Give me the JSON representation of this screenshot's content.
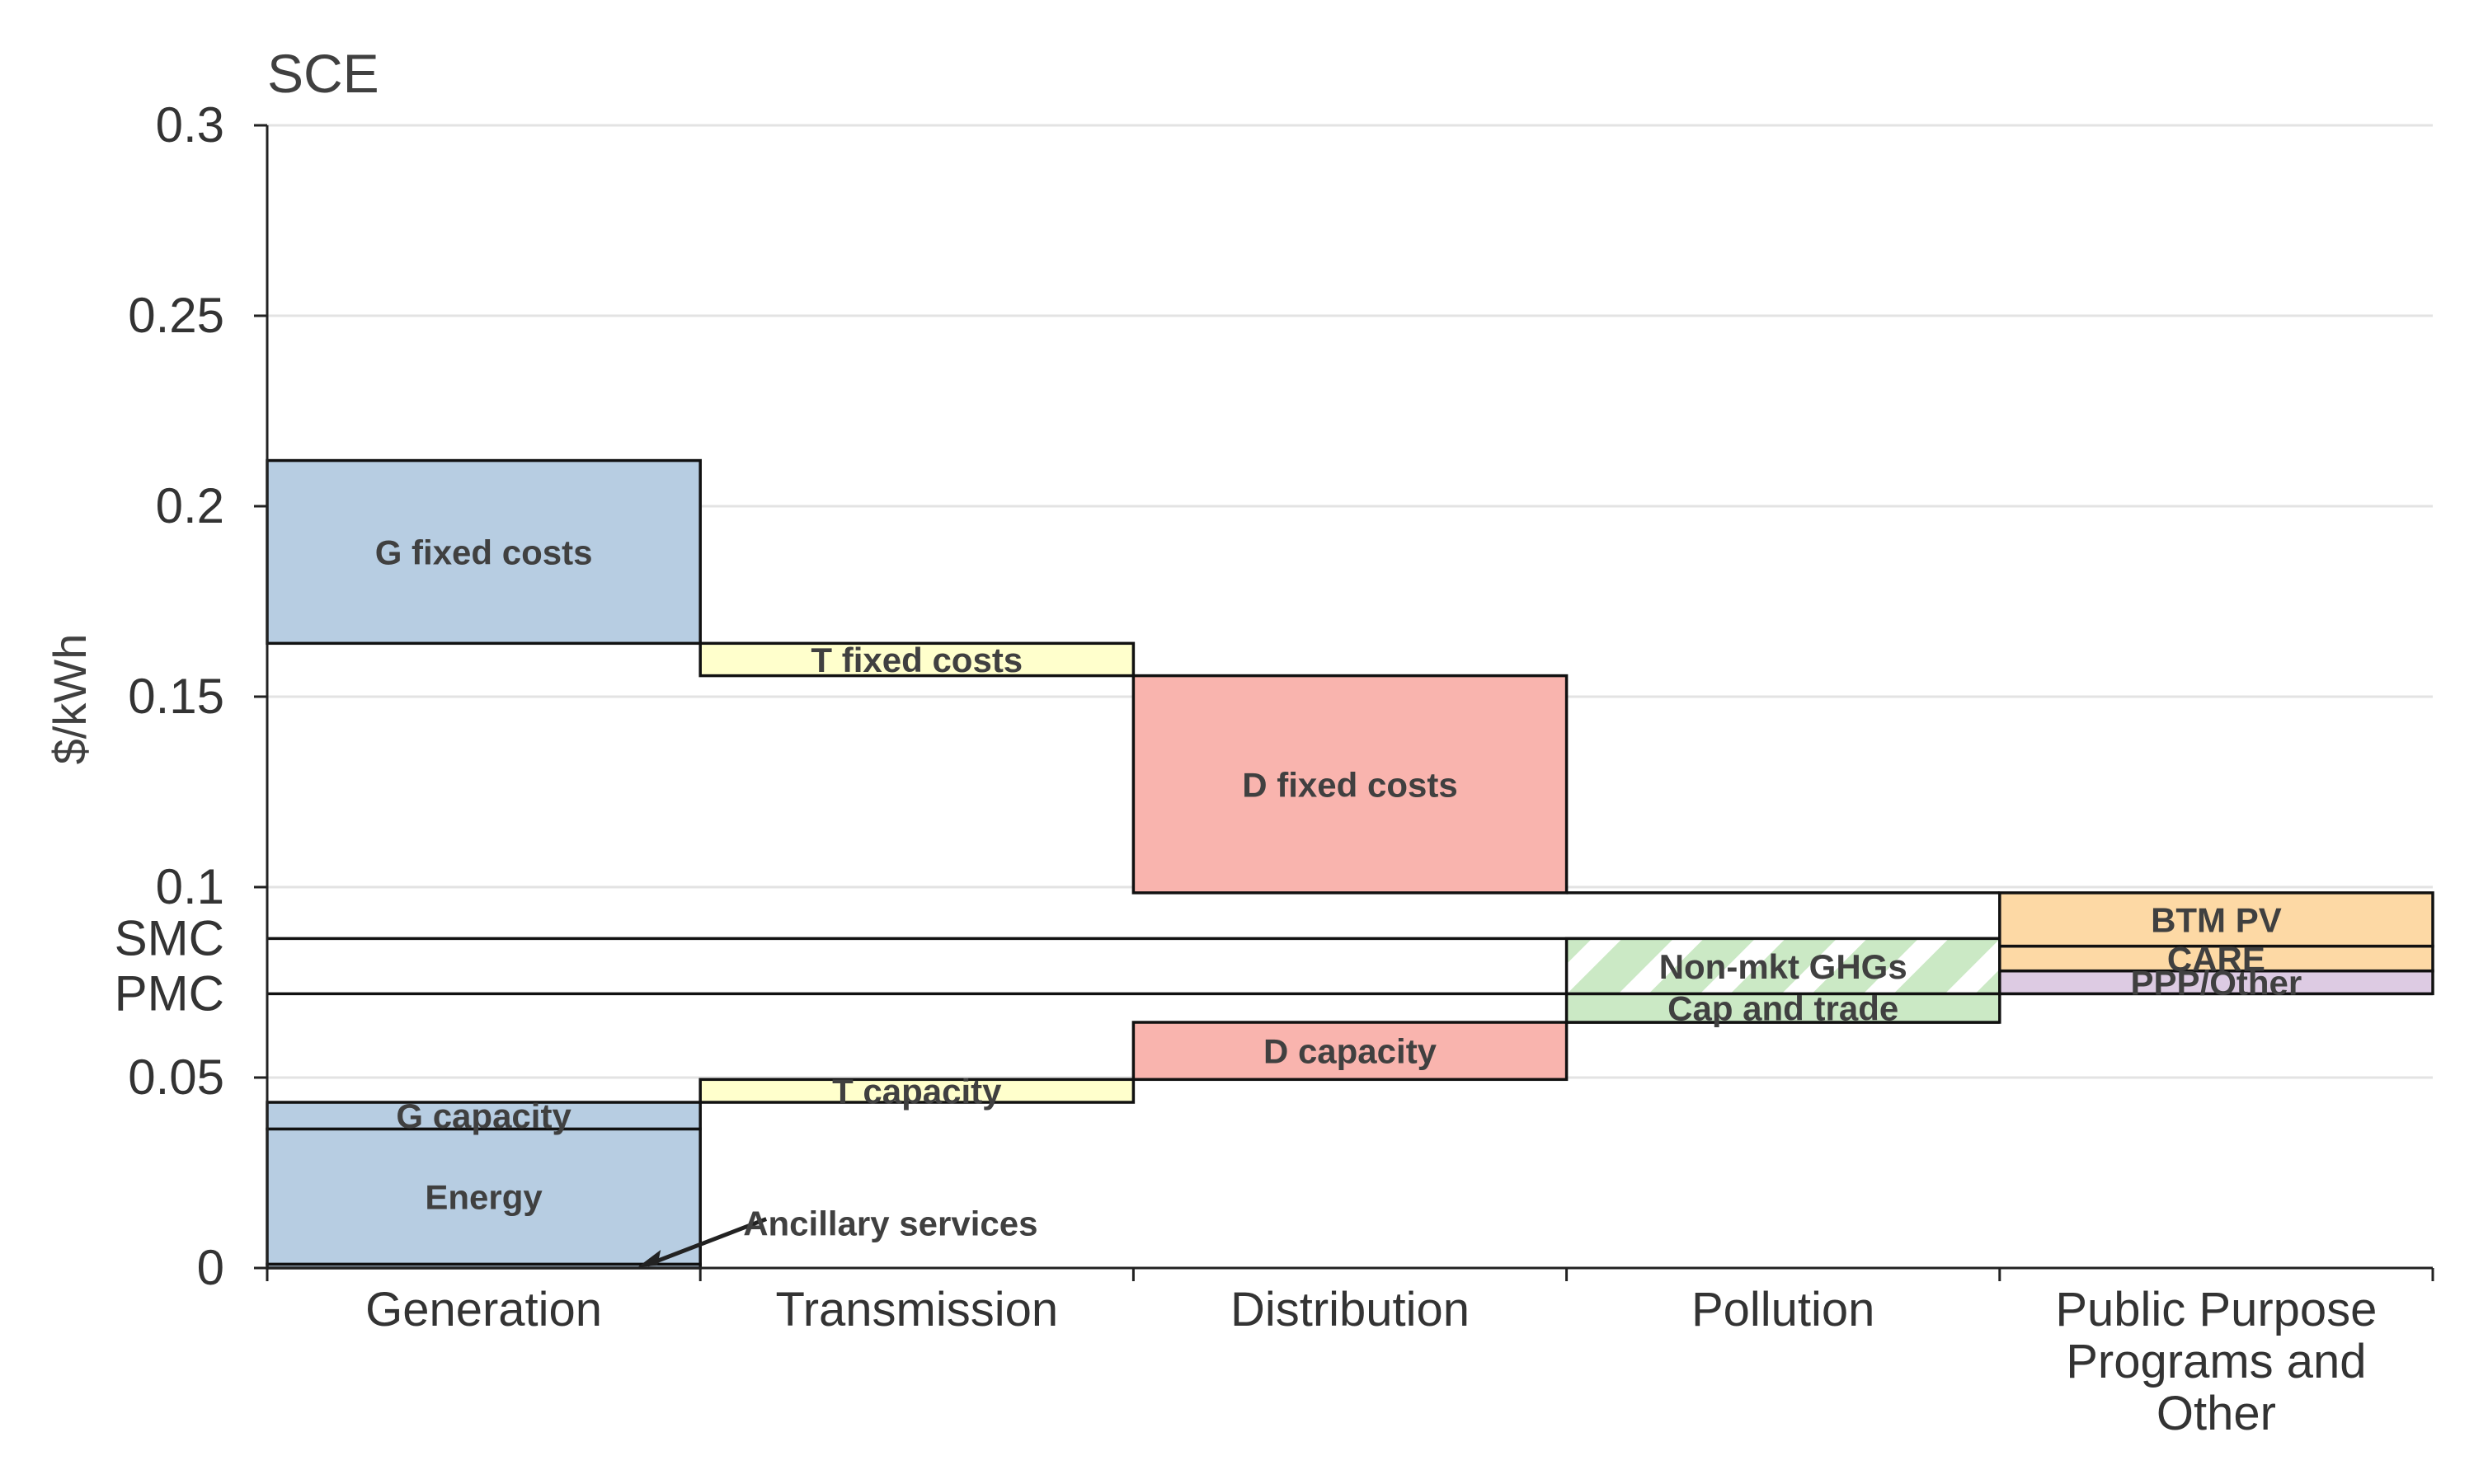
{
  "chart_data": {
    "type": "waterfall",
    "title": "SCE",
    "ylabel": "$/kWh",
    "ylim": [
      0,
      0.3
    ],
    "yticks": [
      {
        "value": 0,
        "label": "0"
      },
      {
        "value": 0.05,
        "label": "0.05"
      },
      {
        "value": 0.1,
        "label": "0.1"
      },
      {
        "value": 0.15,
        "label": "0.15"
      },
      {
        "value": 0.2,
        "label": "0.2"
      },
      {
        "value": 0.25,
        "label": "0.25"
      },
      {
        "value": 0.3,
        "label": "0.3"
      }
    ],
    "reference_lines": [
      {
        "label": "SMC",
        "value": 0.0865
      },
      {
        "label": "PMC",
        "value": 0.072
      }
    ],
    "categories": [
      {
        "name": "Generation",
        "lines": [
          "Generation"
        ]
      },
      {
        "name": "Transmission",
        "lines": [
          "Transmission"
        ]
      },
      {
        "name": "Distribution",
        "lines": [
          "Distribution"
        ]
      },
      {
        "name": "Pollution",
        "lines": [
          "Pollution"
        ]
      },
      {
        "name": "Public Purpose Programs and Other",
        "lines": [
          "Public Purpose",
          "Programs and",
          "Other"
        ]
      }
    ],
    "segments": [
      {
        "label": "Ancillary services",
        "category": 0,
        "bottom": 0,
        "top": 0.001,
        "color": "#b7cde2",
        "callout": true
      },
      {
        "label": "Energy",
        "category": 0,
        "bottom": 0.001,
        "top": 0.0365,
        "color": "#b7cde2"
      },
      {
        "label": "G capacity",
        "category": 0,
        "bottom": 0.0365,
        "top": 0.0435,
        "color": "#b7cde2"
      },
      {
        "label": "T capacity",
        "category": 1,
        "bottom": 0.0435,
        "top": 0.0495,
        "color": "#ffffcc"
      },
      {
        "label": "D capacity",
        "category": 2,
        "bottom": 0.0495,
        "top": 0.0645,
        "color": "#f9b4ae"
      },
      {
        "label": "Cap and trade",
        "category": 3,
        "bottom": 0.0645,
        "top": 0.072,
        "color": "#cbe9c5"
      },
      {
        "label": "Non-mkt GHGs",
        "category": 3,
        "bottom": 0.072,
        "top": 0.0865,
        "color": "#cbe9c5",
        "hatched": true
      },
      {
        "label": "PPP/Other",
        "category": 4,
        "bottom": 0.072,
        "top": 0.078,
        "color": "#ddcbe3"
      },
      {
        "label": "CARE",
        "category": 4,
        "bottom": 0.078,
        "top": 0.0845,
        "color": "#fdd9a5"
      },
      {
        "label": "BTM PV",
        "category": 4,
        "bottom": 0.0845,
        "top": 0.0985,
        "color": "#fdd9a5"
      },
      {
        "label": "D fixed costs",
        "category": 2,
        "bottom": 0.0985,
        "top": 0.1555,
        "color": "#f9b4ae"
      },
      {
        "label": "T fixed costs",
        "category": 1,
        "bottom": 0.1555,
        "top": 0.164,
        "color": "#ffffcc"
      },
      {
        "label": "G fixed costs",
        "category": 0,
        "bottom": 0.164,
        "top": 0.212,
        "color": "#b7cde2"
      }
    ],
    "connectors": [
      {
        "value": 0.0985,
        "from": 3,
        "to": 3
      },
      {
        "value": 0.0645,
        "from": 3,
        "to": 3
      }
    ],
    "grid": true,
    "legend": "none"
  }
}
